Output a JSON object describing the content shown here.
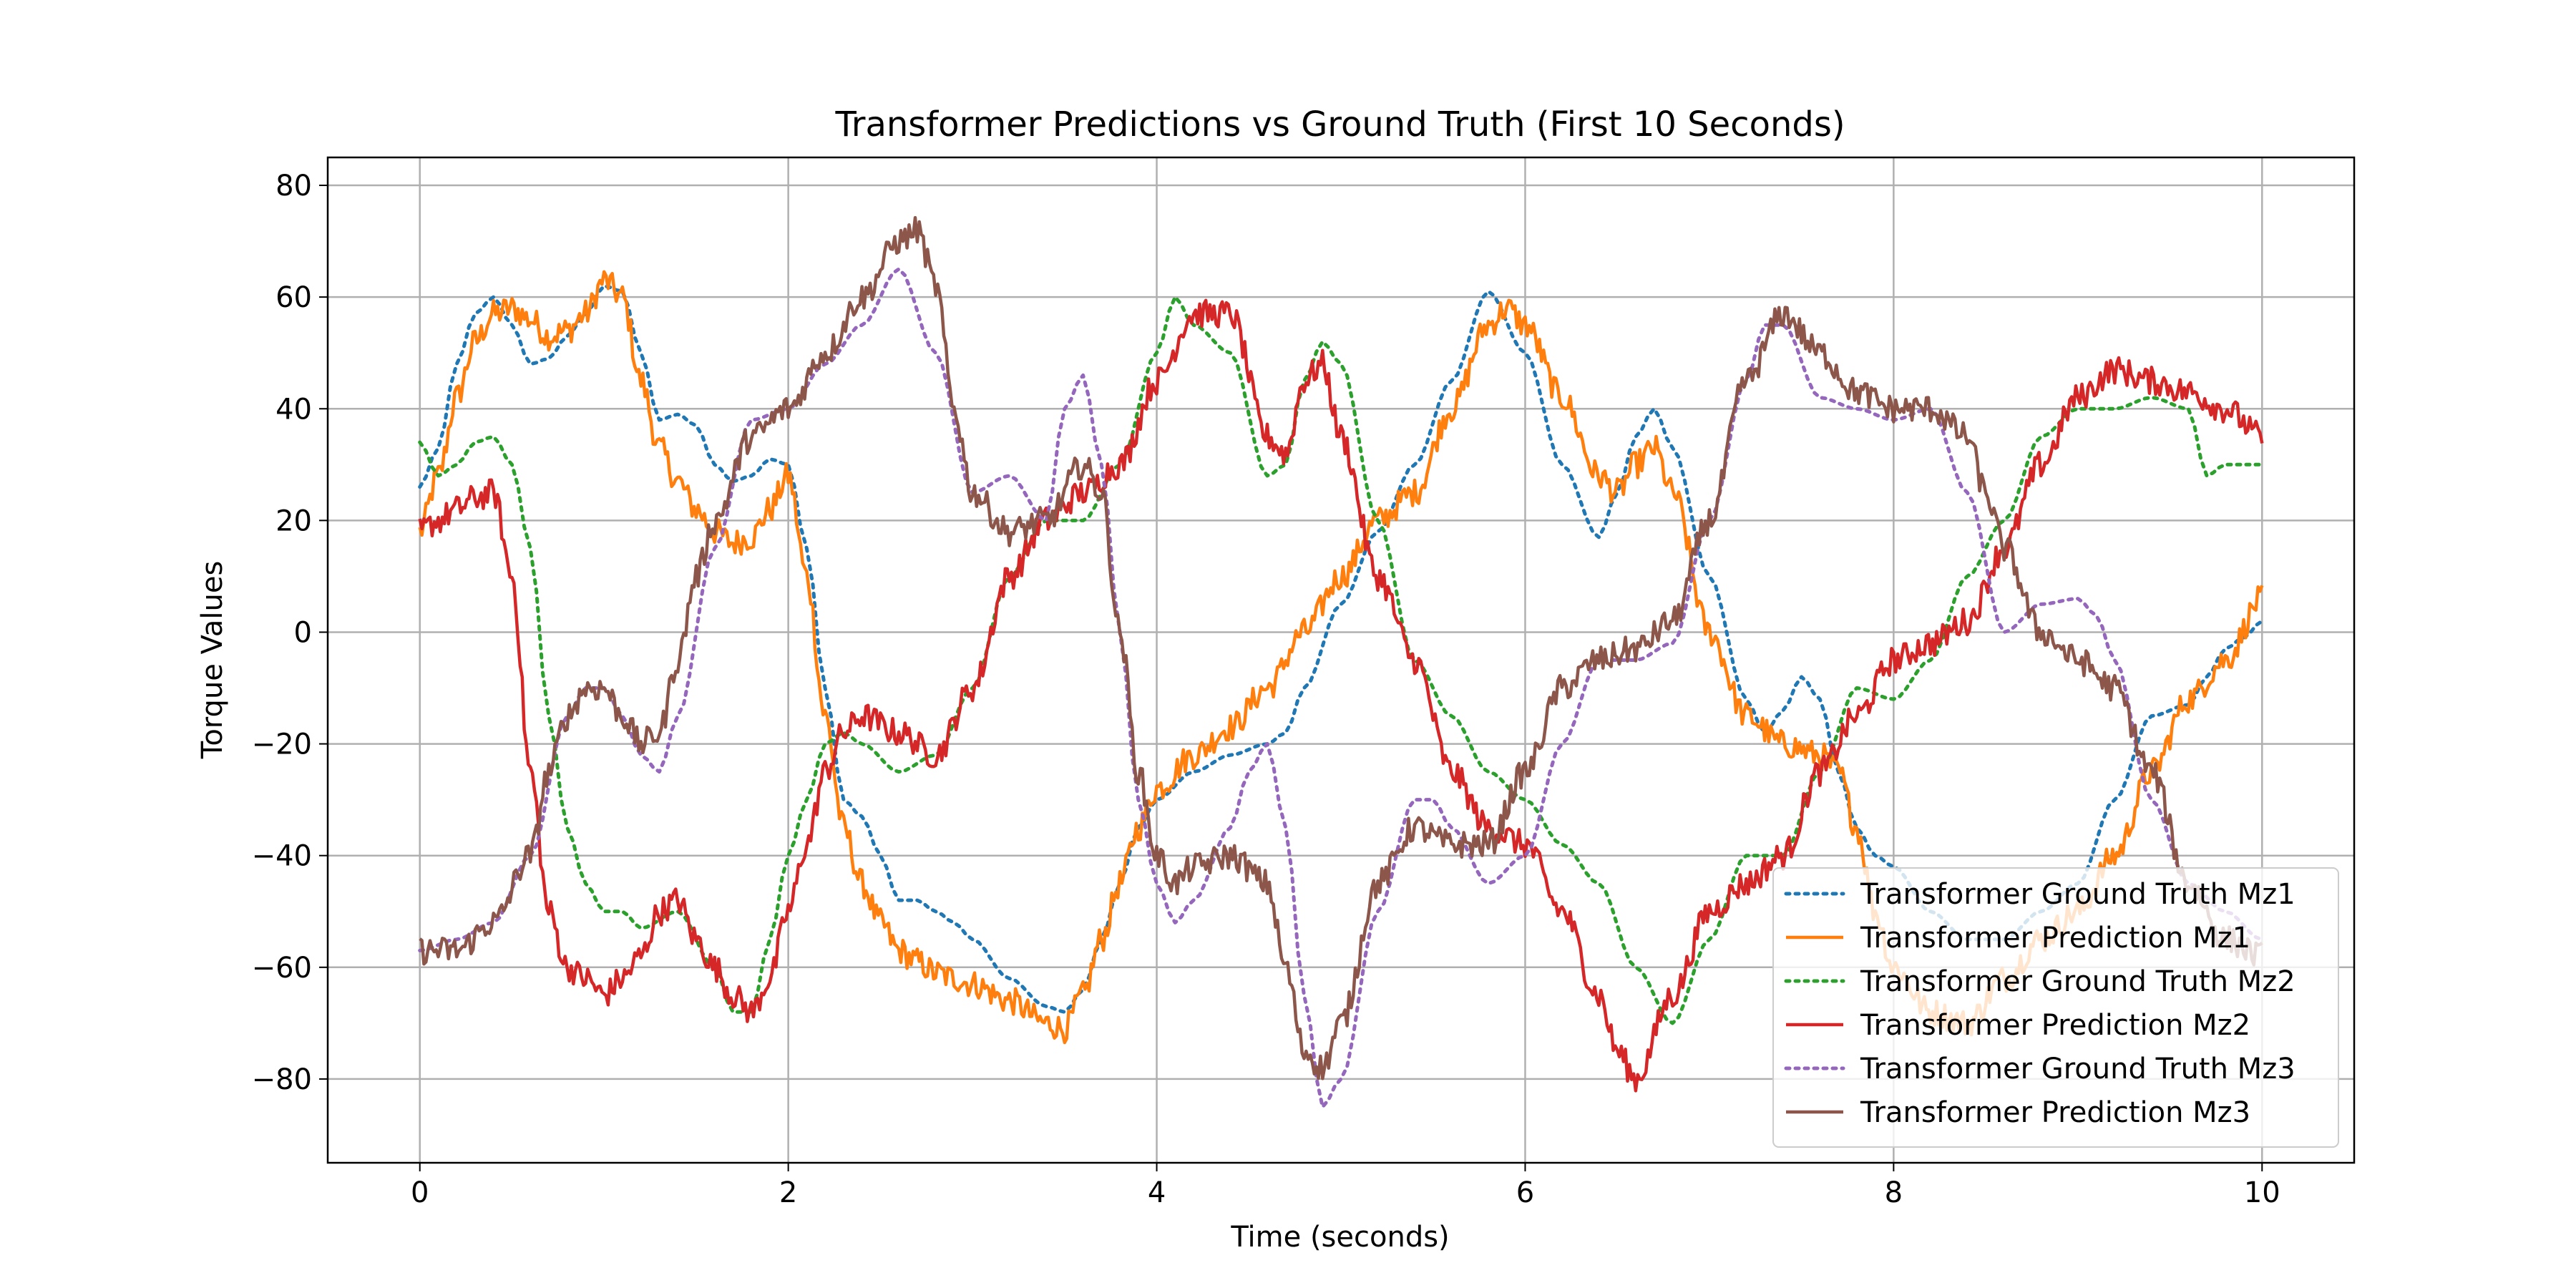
{
  "chart_data": {
    "type": "line",
    "title": "Transformer Predictions vs Ground Truth (First 10 Seconds)",
    "xlabel": "Time (seconds)",
    "ylabel": "Torque Values",
    "xlim": [
      -0.5,
      10.5
    ],
    "ylim": [
      -95,
      85
    ],
    "xticks": [
      0,
      2,
      4,
      6,
      8,
      10
    ],
    "yticks": [
      -80,
      -60,
      -40,
      -20,
      0,
      20,
      40,
      60,
      80
    ],
    "xtick_labels": [
      "0",
      "2",
      "4",
      "6",
      "8",
      "10"
    ],
    "ytick_labels": [
      "−80",
      "−60",
      "−40",
      "−20",
      "0",
      "20",
      "40",
      "60",
      "80"
    ],
    "grid": true,
    "legend_position": "bottom-right",
    "series": [
      {
        "name": "Transformer Ground Truth Mz1",
        "color": "#1f77b4",
        "style": "dotted",
        "noise": 0,
        "x": [
          0,
          0.1,
          0.2,
          0.3,
          0.4,
          0.5,
          0.6,
          0.7,
          0.8,
          0.9,
          1.0,
          1.1,
          1.2,
          1.3,
          1.4,
          1.5,
          1.6,
          1.7,
          1.8,
          1.9,
          2.0,
          2.1,
          2.2,
          2.3,
          2.4,
          2.5,
          2.6,
          2.7,
          2.8,
          2.9,
          3.0,
          3.2,
          3.4,
          3.5,
          3.6,
          3.7,
          3.8,
          3.9,
          4.0,
          4.2,
          4.4,
          4.6,
          4.7,
          4.8,
          5.0,
          5.2,
          5.4,
          5.6,
          5.8,
          6.0,
          6.2,
          6.4,
          6.5,
          6.6,
          6.7,
          6.8,
          7.0,
          7.2,
          7.3,
          7.4,
          7.5,
          7.6,
          7.7,
          7.8,
          7.9,
          8.0,
          8.2,
          8.4,
          8.6,
          8.8,
          9.0,
          9.2,
          9.4,
          9.6,
          9.7,
          9.8,
          9.9,
          10.0
        ],
        "y": [
          26,
          33,
          48,
          57,
          60,
          55,
          48,
          49,
          53,
          57,
          62,
          61,
          50,
          38,
          39,
          37,
          30,
          27,
          28,
          31,
          30,
          15,
          -10,
          -30,
          -33,
          -40,
          -48,
          -48,
          -50,
          -52,
          -55,
          -62,
          -67,
          -68,
          -64,
          -55,
          -45,
          -35,
          -30,
          -25,
          -22,
          -20,
          -18,
          -10,
          5,
          18,
          30,
          45,
          61,
          50,
          30,
          17,
          25,
          35,
          40,
          33,
          10,
          -12,
          -18,
          -14,
          -8,
          -12,
          -25,
          -35,
          -40,
          -42,
          -50,
          -55,
          -55,
          -50,
          -45,
          -30,
          -15,
          -13,
          -8,
          -3,
          -1,
          2
        ]
      },
      {
        "name": "Transformer Prediction Mz1",
        "color": "#ff7f0e",
        "style": "solid",
        "noise": 2.5,
        "x": [
          0,
          0.1,
          0.2,
          0.3,
          0.4,
          0.5,
          0.6,
          0.7,
          0.8,
          0.9,
          1.0,
          1.1,
          1.2,
          1.3,
          1.4,
          1.5,
          1.6,
          1.7,
          1.8,
          1.9,
          2.0,
          2.1,
          2.2,
          2.3,
          2.4,
          2.5,
          2.6,
          2.7,
          2.8,
          2.9,
          3.0,
          3.2,
          3.4,
          3.5,
          3.6,
          3.7,
          3.8,
          3.9,
          4.0,
          4.2,
          4.4,
          4.6,
          4.8,
          5.0,
          5.2,
          5.4,
          5.6,
          5.8,
          5.9,
          6.0,
          6.2,
          6.4,
          6.5,
          6.6,
          6.7,
          6.8,
          7.0,
          7.2,
          7.4,
          7.6,
          7.7,
          7.8,
          7.9,
          8.0,
          8.2,
          8.4,
          8.6,
          8.8,
          9.0,
          9.2,
          9.4,
          9.6,
          9.8,
          10.0
        ],
        "y": [
          18,
          28,
          42,
          52,
          57,
          58,
          56,
          53,
          54,
          57,
          63,
          60,
          45,
          33,
          27,
          22,
          18,
          16,
          17,
          22,
          28,
          10,
          -15,
          -35,
          -45,
          -52,
          -57,
          -59,
          -61,
          -62,
          -63,
          -66,
          -70,
          -71,
          -65,
          -55,
          -45,
          -35,
          -28,
          -22,
          -17,
          -10,
          0,
          10,
          20,
          25,
          40,
          55,
          58,
          55,
          42,
          28,
          25,
          30,
          33,
          25,
          0,
          -15,
          -20,
          -22,
          -25,
          -35,
          -50,
          -60,
          -68,
          -70,
          -62,
          -55,
          -50,
          -40,
          -25,
          -12,
          -5,
          6
        ]
      },
      {
        "name": "Transformer Ground Truth Mz2",
        "color": "#2ca02c",
        "style": "dotted",
        "noise": 0,
        "x": [
          0,
          0.1,
          0.2,
          0.3,
          0.4,
          0.5,
          0.6,
          0.7,
          0.8,
          0.9,
          1.0,
          1.1,
          1.2,
          1.4,
          1.6,
          1.7,
          1.8,
          1.9,
          2.0,
          2.1,
          2.2,
          2.3,
          2.4,
          2.6,
          2.8,
          3.0,
          3.2,
          3.4,
          3.6,
          3.8,
          4.0,
          4.1,
          4.2,
          4.4,
          4.6,
          4.7,
          4.8,
          4.9,
          5.0,
          5.2,
          5.4,
          5.6,
          5.8,
          6.0,
          6.2,
          6.4,
          6.6,
          6.8,
          7.0,
          7.2,
          7.4,
          7.6,
          7.8,
          8.0,
          8.2,
          8.4,
          8.6,
          8.8,
          9.0,
          9.2,
          9.4,
          9.6,
          9.7,
          9.8,
          10.0
        ],
        "y": [
          34,
          28,
          30,
          34,
          35,
          30,
          15,
          -15,
          -35,
          -45,
          -50,
          -50,
          -53,
          -50,
          -60,
          -68,
          -68,
          -55,
          -40,
          -30,
          -20,
          -18,
          -20,
          -25,
          -22,
          -10,
          10,
          20,
          20,
          30,
          50,
          60,
          55,
          50,
          28,
          30,
          45,
          52,
          48,
          20,
          -5,
          -15,
          -25,
          -30,
          -38,
          -45,
          -60,
          -70,
          -55,
          -40,
          -40,
          -25,
          -10,
          -12,
          -5,
          10,
          20,
          35,
          40,
          40,
          42,
          40,
          28,
          30,
          30
        ]
      },
      {
        "name": "Transformer Prediction Mz2",
        "color": "#d62728",
        "style": "solid",
        "noise": 2.5,
        "x": [
          0,
          0.1,
          0.2,
          0.3,
          0.4,
          0.5,
          0.6,
          0.7,
          0.8,
          0.9,
          1.0,
          1.1,
          1.2,
          1.3,
          1.4,
          1.5,
          1.6,
          1.7,
          1.8,
          1.9,
          2.0,
          2.1,
          2.2,
          2.3,
          2.4,
          2.6,
          2.8,
          3.0,
          3.2,
          3.4,
          3.6,
          3.8,
          4.0,
          4.2,
          4.4,
          4.6,
          4.7,
          4.8,
          4.9,
          5.0,
          5.2,
          5.4,
          5.6,
          5.8,
          6.0,
          6.2,
          6.4,
          6.5,
          6.6,
          6.8,
          7.0,
          7.2,
          7.4,
          7.6,
          7.8,
          8.0,
          8.2,
          8.4,
          8.6,
          8.8,
          9.0,
          9.2,
          9.4,
          9.6,
          9.8,
          10.0
        ],
        "y": [
          18,
          20,
          22,
          24,
          25,
          10,
          -25,
          -50,
          -60,
          -62,
          -65,
          -62,
          -58,
          -50,
          -48,
          -55,
          -60,
          -65,
          -68,
          -62,
          -50,
          -38,
          -25,
          -18,
          -15,
          -18,
          -22,
          -10,
          10,
          20,
          25,
          30,
          45,
          57,
          57,
          35,
          32,
          45,
          48,
          35,
          10,
          -5,
          -25,
          -35,
          -38,
          -50,
          -65,
          -75,
          -80,
          -65,
          -50,
          -45,
          -40,
          -25,
          -15,
          -5,
          -2,
          2,
          15,
          30,
          42,
          47,
          45,
          43,
          40,
          35
        ]
      },
      {
        "name": "Transformer Ground Truth Mz3",
        "color": "#9467bd",
        "style": "dotted",
        "noise": 0,
        "x": [
          0,
          0.2,
          0.4,
          0.6,
          0.8,
          0.9,
          1.0,
          1.1,
          1.2,
          1.3,
          1.4,
          1.6,
          1.8,
          2.0,
          2.2,
          2.4,
          2.6,
          2.8,
          3.0,
          3.2,
          3.4,
          3.5,
          3.6,
          3.7,
          3.8,
          3.9,
          4.0,
          4.1,
          4.2,
          4.4,
          4.5,
          4.6,
          4.7,
          4.8,
          4.9,
          5.0,
          5.2,
          5.4,
          5.5,
          5.6,
          5.8,
          6.0,
          6.2,
          6.4,
          6.6,
          6.8,
          7.0,
          7.2,
          7.3,
          7.4,
          7.6,
          7.8,
          8.0,
          8.2,
          8.4,
          8.6,
          8.8,
          9.0,
          9.1,
          9.2,
          9.4,
          9.6,
          9.8,
          10.0
        ],
        "y": [
          -57,
          -55,
          -52,
          -40,
          -15,
          -10,
          -10,
          -15,
          -22,
          -25,
          -15,
          15,
          38,
          40,
          48,
          55,
          65,
          50,
          25,
          28,
          20,
          40,
          46,
          30,
          0,
          -30,
          -45,
          -52,
          -48,
          -35,
          -25,
          -20,
          -35,
          -65,
          -85,
          -80,
          -50,
          -30,
          -30,
          -35,
          -45,
          -40,
          -20,
          -5,
          -5,
          -2,
          20,
          45,
          55,
          55,
          42,
          40,
          38,
          40,
          25,
          0,
          5,
          6,
          3,
          -5,
          -30,
          -45,
          -50,
          -55
        ]
      },
      {
        "name": "Transformer Prediction Mz3",
        "color": "#8c564b",
        "style": "solid",
        "noise": 2.5,
        "x": [
          0,
          0.2,
          0.4,
          0.6,
          0.7,
          0.8,
          0.9,
          1.0,
          1.1,
          1.2,
          1.3,
          1.4,
          1.5,
          1.6,
          1.8,
          2.0,
          2.2,
          2.4,
          2.6,
          2.7,
          2.8,
          2.9,
          3.0,
          3.2,
          3.4,
          3.6,
          3.7,
          3.8,
          3.9,
          4.0,
          4.1,
          4.2,
          4.4,
          4.6,
          4.7,
          4.8,
          4.9,
          5.0,
          5.2,
          5.4,
          5.6,
          5.8,
          6.0,
          6.2,
          6.4,
          6.6,
          6.8,
          7.0,
          7.2,
          7.4,
          7.6,
          7.8,
          8.0,
          8.2,
          8.4,
          8.5,
          8.6,
          8.8,
          9.0,
          9.2,
          9.4,
          9.6,
          9.8,
          10.0
        ],
        "y": [
          -57,
          -57,
          -52,
          -40,
          -25,
          -15,
          -10,
          -10,
          -15,
          -20,
          -18,
          -5,
          10,
          20,
          35,
          40,
          50,
          60,
          70,
          72,
          62,
          40,
          25,
          18,
          20,
          30,
          25,
          0,
          -25,
          -40,
          -45,
          -42,
          -40,
          -45,
          -60,
          -75,
          -78,
          -70,
          -45,
          -35,
          -38,
          -38,
          -25,
          -10,
          -5,
          -3,
          2,
          20,
          45,
          57,
          50,
          43,
          40,
          40,
          35,
          25,
          15,
          0,
          -5,
          -10,
          -25,
          -45,
          -55,
          -58
        ]
      }
    ]
  }
}
